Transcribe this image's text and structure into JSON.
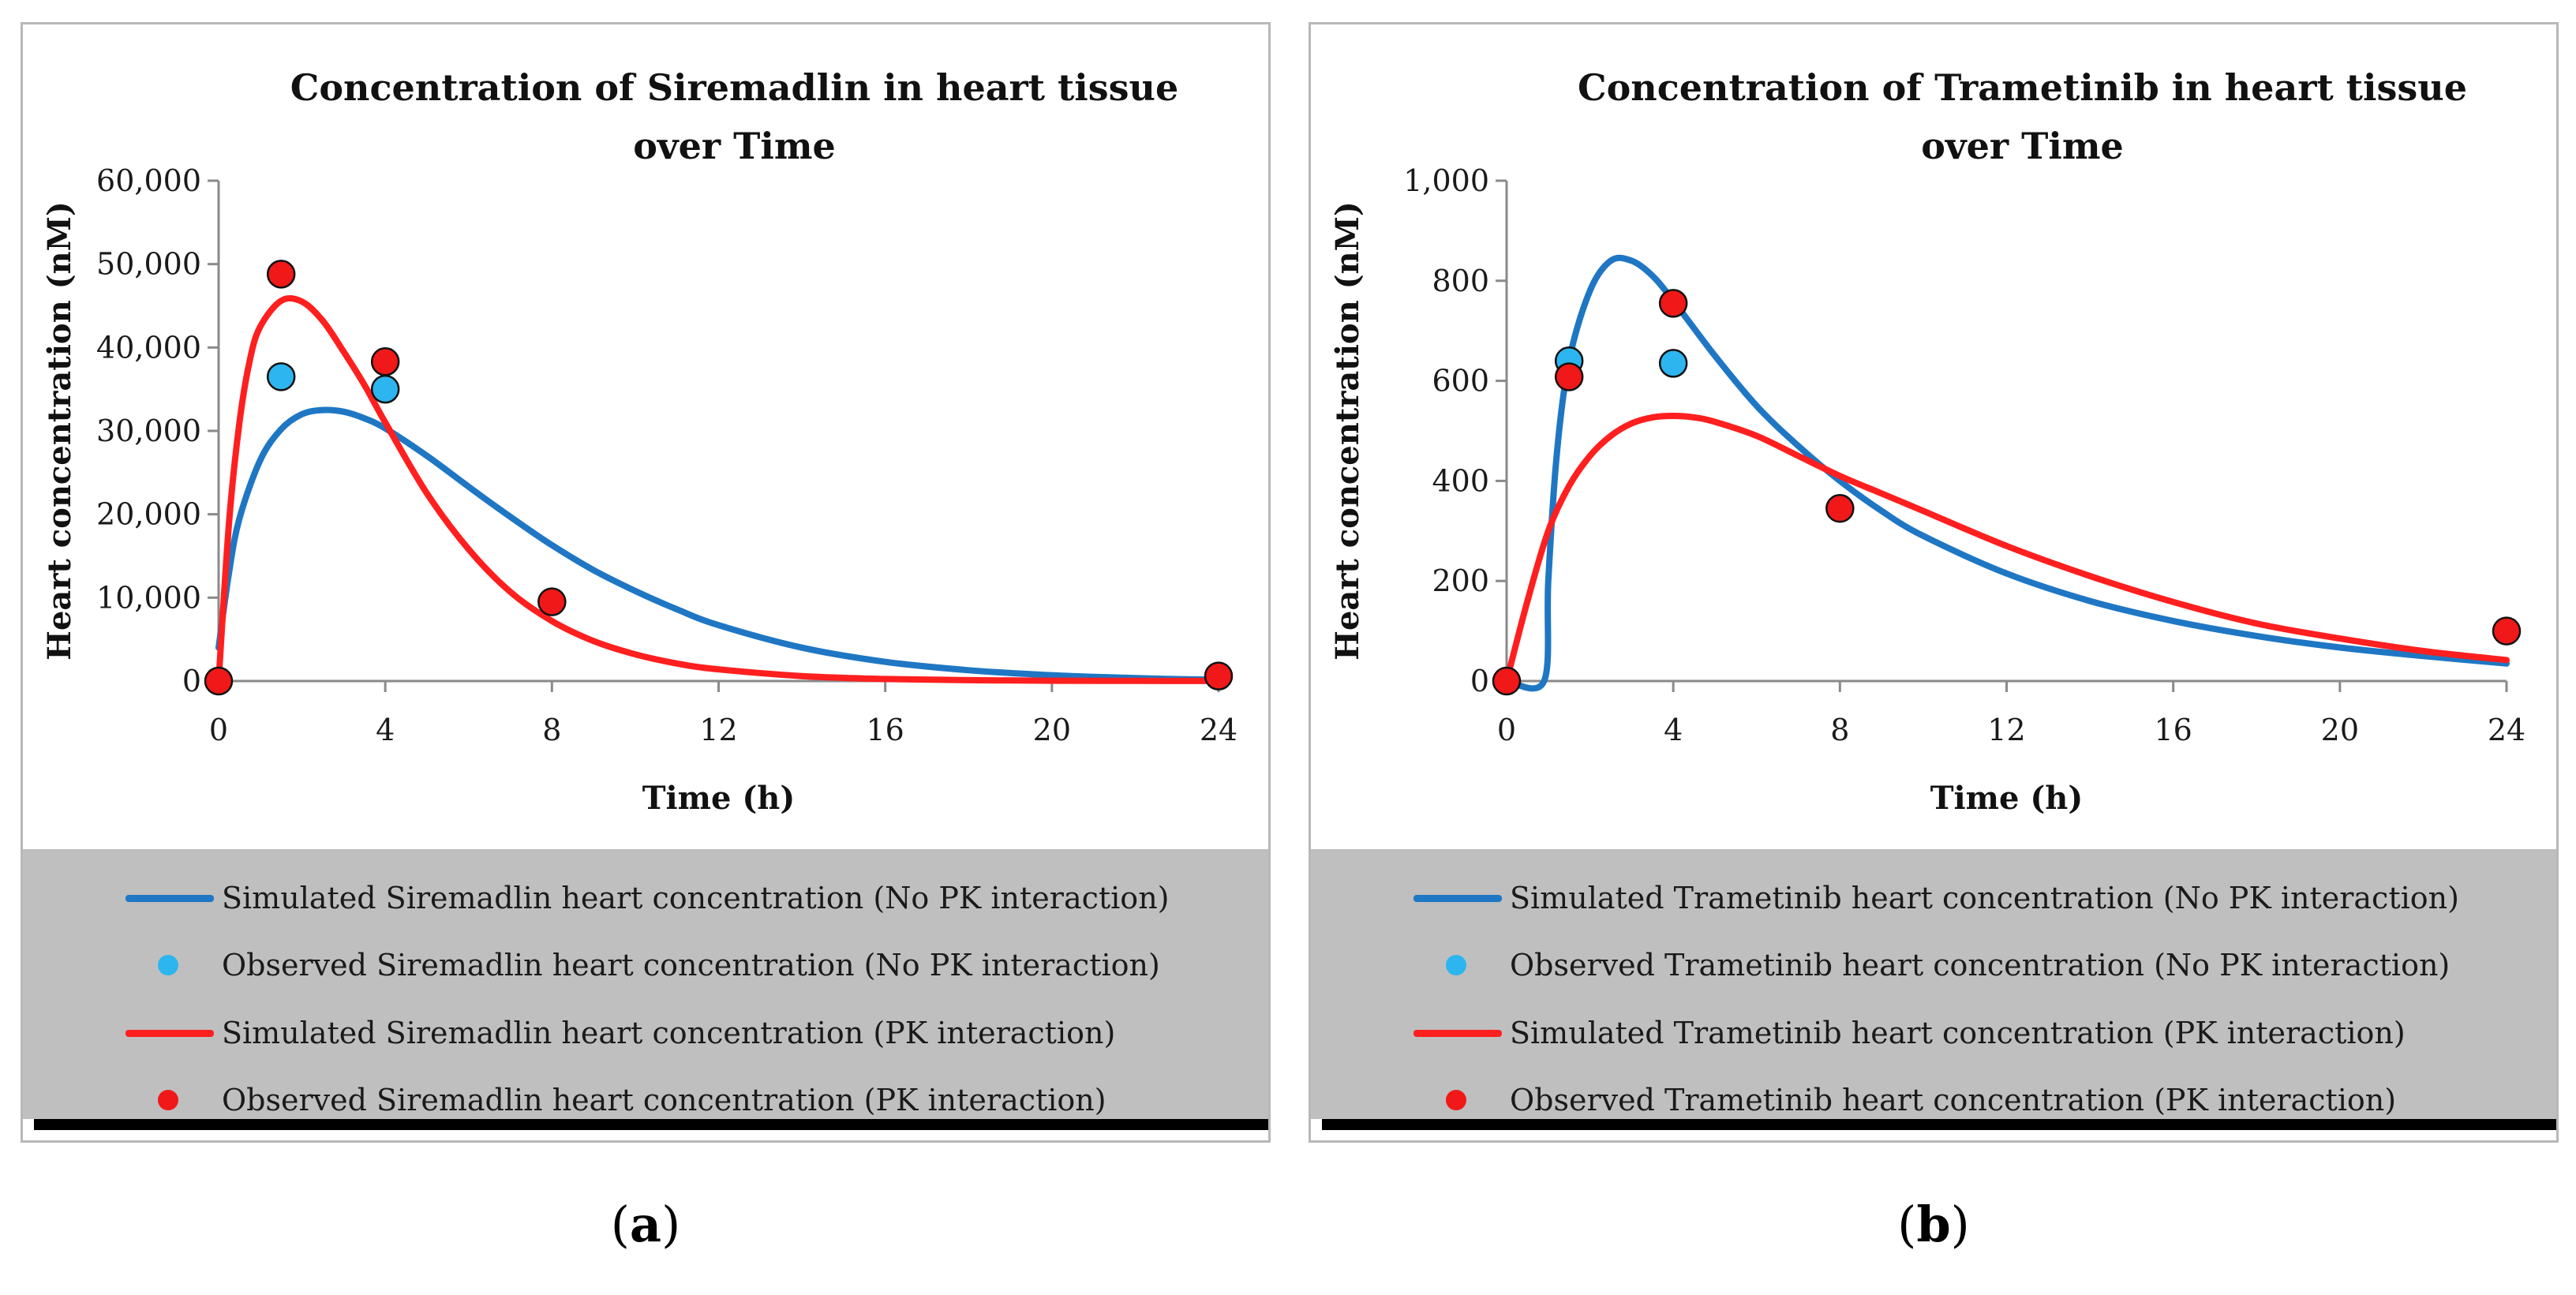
{
  "colors": {
    "blue": "#1f77c4",
    "red": "#ff1f1f",
    "obs_blue": "#2cb5ef",
    "obs_red": "#f01818"
  },
  "panels": [
    {
      "caption_open": "(",
      "caption_letter": "a",
      "caption_close": ")",
      "legend": [
        {
          "kind": "line",
          "color": "#1f77c4",
          "label": "Simulated Siremadlin heart concentration (No PK interaction)"
        },
        {
          "kind": "dot",
          "color": "#2cb5ef",
          "label": "Observed Siremadlin heart concentration (No PK interaction)"
        },
        {
          "kind": "line",
          "color": "#ff1f1f",
          "label": "Simulated Siremadlin heart concentration (PK interaction)"
        },
        {
          "kind": "dot",
          "color": "#f01818",
          "label": "Observed Siremadlin heart concentration (PK interaction)"
        }
      ]
    },
    {
      "caption_open": "(",
      "caption_letter": "b",
      "caption_close": ")",
      "legend": [
        {
          "kind": "line",
          "color": "#1f77c4",
          "label": "Simulated Trametinib heart concentration (No PK interaction)"
        },
        {
          "kind": "dot",
          "color": "#2cb5ef",
          "label": "Observed Trametinib heart concentration (No PK interaction)"
        },
        {
          "kind": "line",
          "color": "#ff1f1f",
          "label": "Simulated Trametinib heart concentration (PK interaction)"
        },
        {
          "kind": "dot",
          "color": "#f01818",
          "label": "Observed Trametinib heart concentration (PK interaction)"
        }
      ]
    }
  ],
  "chart_data": [
    {
      "type": "line",
      "title_lines": [
        "Concentration of Siremadlin in heart tissue",
        "over Time"
      ],
      "xlabel": "Time (h)",
      "ylabel": "Heart concentration (nM)",
      "xlim": [
        0,
        24
      ],
      "ylim": [
        0,
        60000
      ],
      "xticks": [
        0,
        4,
        8,
        12,
        16,
        20,
        24
      ],
      "yticks": [
        0,
        10000,
        20000,
        30000,
        40000,
        50000,
        60000
      ],
      "ytick_labels": [
        "0",
        "10,000",
        "20,000",
        "30,000",
        "40,000",
        "50,000",
        "60,000"
      ],
      "grid": false,
      "legend_position": "bottom",
      "series": [
        {
          "name": "Simulated Siremadlin heart concentration (No PK interaction)",
          "kind": "line",
          "color": "#1f77c4",
          "x": [
            0,
            0.25,
            0.5,
            1,
            1.5,
            2,
            2.5,
            3,
            3.5,
            4,
            5,
            6,
            7,
            8,
            9,
            10,
            11,
            12,
            14,
            16,
            18,
            20,
            22,
            24
          ],
          "y": [
            4000,
            13000,
            19500,
            26500,
            30200,
            32000,
            32500,
            32300,
            31500,
            30300,
            27000,
            23300,
            19700,
            16300,
            13300,
            10800,
            8600,
            6700,
            4000,
            2300,
            1300,
            700,
            350,
            150
          ]
        },
        {
          "name": "Simulated Siremadlin heart concentration (PK interaction)",
          "kind": "line",
          "color": "#ff1f1f",
          "x": [
            0,
            0.25,
            0.5,
            0.75,
            1,
            1.5,
            2,
            2.5,
            3,
            3.5,
            4,
            5,
            6,
            7,
            8,
            9,
            10,
            11,
            12,
            14,
            16,
            18,
            20,
            22,
            24
          ],
          "y": [
            0,
            19000,
            31000,
            38500,
            42500,
            45600,
            45500,
            43200,
            39500,
            35500,
            31000,
            22500,
            15800,
            10700,
            7200,
            4800,
            3200,
            2100,
            1400,
            600,
            250,
            100,
            40,
            15,
            5
          ]
        },
        {
          "name": "Observed Siremadlin heart concentration (No PK interaction)",
          "kind": "points",
          "color": "#2cb5ef",
          "x": [
            1.5,
            4
          ],
          "y": [
            36500,
            35000
          ]
        },
        {
          "name": "Observed Siremadlin heart concentration (PK interaction)",
          "kind": "points",
          "color": "#f01818",
          "x": [
            0,
            1.5,
            4,
            8,
            24
          ],
          "y": [
            0,
            48800,
            38300,
            9500,
            600
          ]
        }
      ]
    },
    {
      "type": "line",
      "title_lines": [
        "Concentration of Trametinib in heart tissue",
        "over Time"
      ],
      "xlabel": "Time (h)",
      "ylabel": "Heart concentration (nM)",
      "xlim": [
        0,
        24
      ],
      "ylim": [
        0,
        1000
      ],
      "xticks": [
        0,
        4,
        8,
        12,
        16,
        20,
        24
      ],
      "yticks": [
        0,
        200,
        400,
        600,
        800,
        1000
      ],
      "ytick_labels": [
        "0",
        "200",
        "400",
        "600",
        "800",
        "1,000"
      ],
      "grid": false,
      "legend_position": "bottom",
      "series": [
        {
          "name": "Simulated Trametinib heart concentration (No PK interaction)",
          "kind": "line",
          "color": "#1f77c4",
          "x": [
            0,
            0.9,
            1.0,
            1.2,
            1.5,
            2,
            2.5,
            3,
            3.5,
            4,
            5,
            6,
            7,
            8,
            9,
            10,
            12,
            14,
            16,
            18,
            20,
            22,
            24
          ],
          "y": [
            0,
            0,
            200,
            450,
            640,
            780,
            840,
            840,
            810,
            760,
            650,
            550,
            470,
            400,
            340,
            290,
            215,
            160,
            120,
            90,
            67,
            50,
            35
          ]
        },
        {
          "name": "Simulated Trametinib heart concentration (PK interaction)",
          "kind": "line",
          "color": "#ff1f1f",
          "x": [
            0,
            0.5,
            1,
            1.5,
            2,
            2.5,
            3,
            3.5,
            4,
            4.5,
            5,
            6,
            7,
            8,
            9,
            10,
            12,
            14,
            16,
            18,
            20,
            22,
            24
          ],
          "y": [
            0,
            160,
            300,
            390,
            450,
            490,
            515,
            527,
            530,
            527,
            518,
            490,
            450,
            410,
            375,
            340,
            270,
            210,
            158,
            115,
            85,
            60,
            42
          ]
        },
        {
          "name": "Observed Trametinib heart concentration (No PK interaction)",
          "kind": "points",
          "color": "#2cb5ef",
          "x": [
            1.5,
            4
          ],
          "y": [
            640,
            635
          ]
        },
        {
          "name": "Observed Trametinib heart concentration (PK interaction)",
          "kind": "points",
          "color": "#f01818",
          "x": [
            0,
            1.5,
            4,
            8,
            24
          ],
          "y": [
            0,
            608,
            755,
            345,
            100
          ]
        }
      ]
    }
  ]
}
